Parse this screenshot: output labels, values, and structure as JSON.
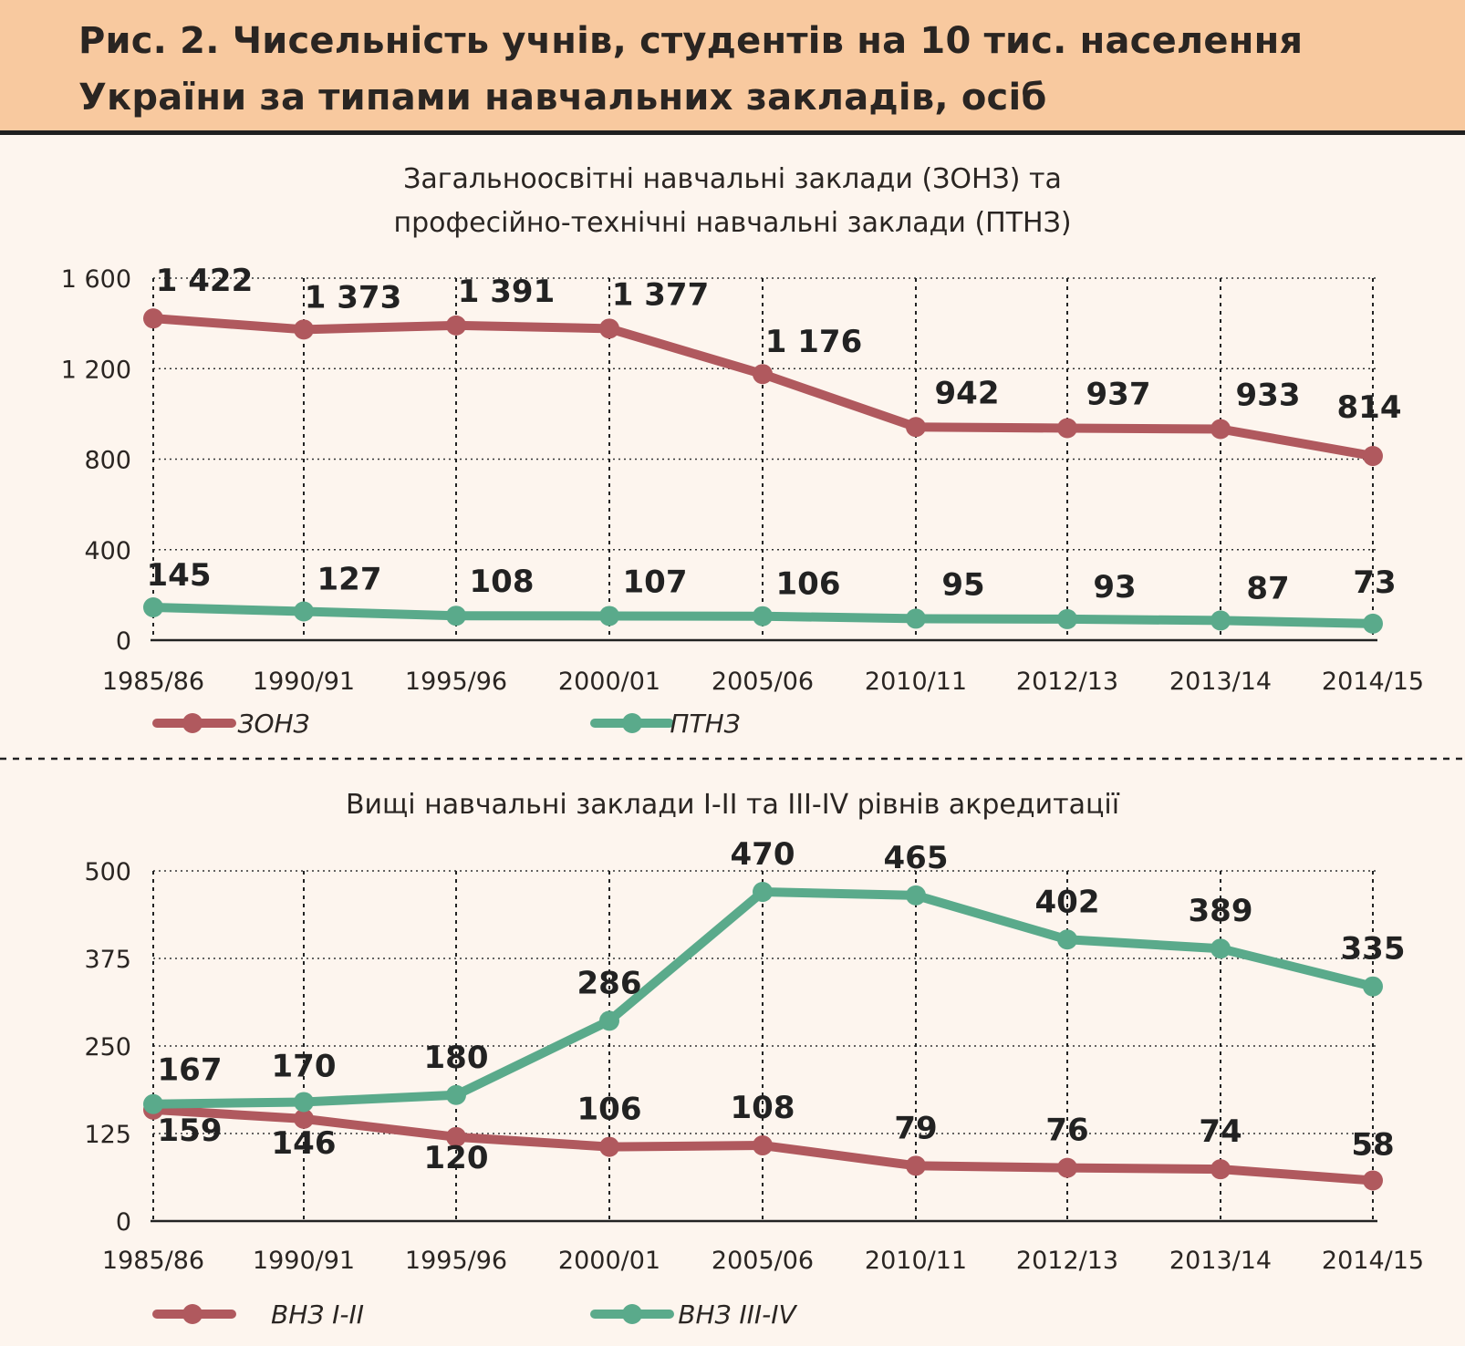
{
  "header": {
    "title_line1": "Рис. 2. Чисельність учнів, студентів на 10 тис. населення",
    "title_line2": "України за типами навчальних закладів, осіб"
  },
  "colors": {
    "background": "#fdf5ee",
    "header_background": "#f8c99f",
    "series_red": "#b0595e",
    "series_green": "#5aaa8b"
  },
  "chart_data": [
    {
      "type": "line",
      "title_lines": [
        "Загальноосвітні навчальні заклади (ЗОНЗ) та",
        "професійно-технічні навчальні заклади (ПТНЗ)"
      ],
      "categories": [
        "1985/86",
        "1990/91",
        "1995/96",
        "2000/01",
        "2005/06",
        "2010/11",
        "2012/13",
        "2013/14",
        "2014/15"
      ],
      "ylim": [
        0,
        1600
      ],
      "yticks": [
        0,
        400,
        800,
        1200,
        1600
      ],
      "ytick_labels": [
        "0",
        "400",
        "800",
        "1 200",
        "1 600"
      ],
      "grid": "dotted",
      "legend_position": "bottom-left",
      "series": [
        {
          "name": "ЗОНЗ",
          "color": "#b0595e",
          "values": [
            1422,
            1373,
            1391,
            1377,
            1176,
            942,
            937,
            933,
            814
          ],
          "labels": [
            "1 422",
            "1 373",
            "1 391",
            "1 377",
            "1 176",
            "942",
            "937",
            "933",
            "814"
          ]
        },
        {
          "name": "ПТНЗ",
          "color": "#5aaa8b",
          "values": [
            145,
            127,
            108,
            107,
            106,
            95,
            93,
            87,
            73
          ],
          "labels": [
            "145",
            "127",
            "108",
            "107",
            "106",
            "95",
            "93",
            "87",
            "73"
          ]
        }
      ]
    },
    {
      "type": "line",
      "title_lines": [
        "Вищі навчальні заклади I-II та III-IV рівнів акредитації"
      ],
      "categories": [
        "1985/86",
        "1990/91",
        "1995/96",
        "2000/01",
        "2005/06",
        "2010/11",
        "2012/13",
        "2013/14",
        "2014/15"
      ],
      "ylim": [
        0,
        500
      ],
      "yticks": [
        0,
        125,
        250,
        375,
        500
      ],
      "ytick_labels": [
        "0",
        "125",
        "250",
        "375",
        "500"
      ],
      "grid": "dotted",
      "legend_position": "bottom-left",
      "series": [
        {
          "name": "ВНЗ I-II",
          "color": "#b0595e",
          "values": [
            159,
            146,
            120,
            106,
            108,
            79,
            76,
            74,
            58
          ],
          "labels": [
            "159",
            "146",
            "120",
            "106",
            "108",
            "79",
            "76",
            "74",
            "58"
          ]
        },
        {
          "name": "ВНЗ III-IV",
          "color": "#5aaa8b",
          "values": [
            167,
            170,
            180,
            286,
            470,
            465,
            402,
            389,
            335
          ],
          "labels": [
            "167",
            "170",
            "180",
            "286",
            "470",
            "465",
            "402",
            "389",
            "335"
          ]
        }
      ]
    }
  ]
}
